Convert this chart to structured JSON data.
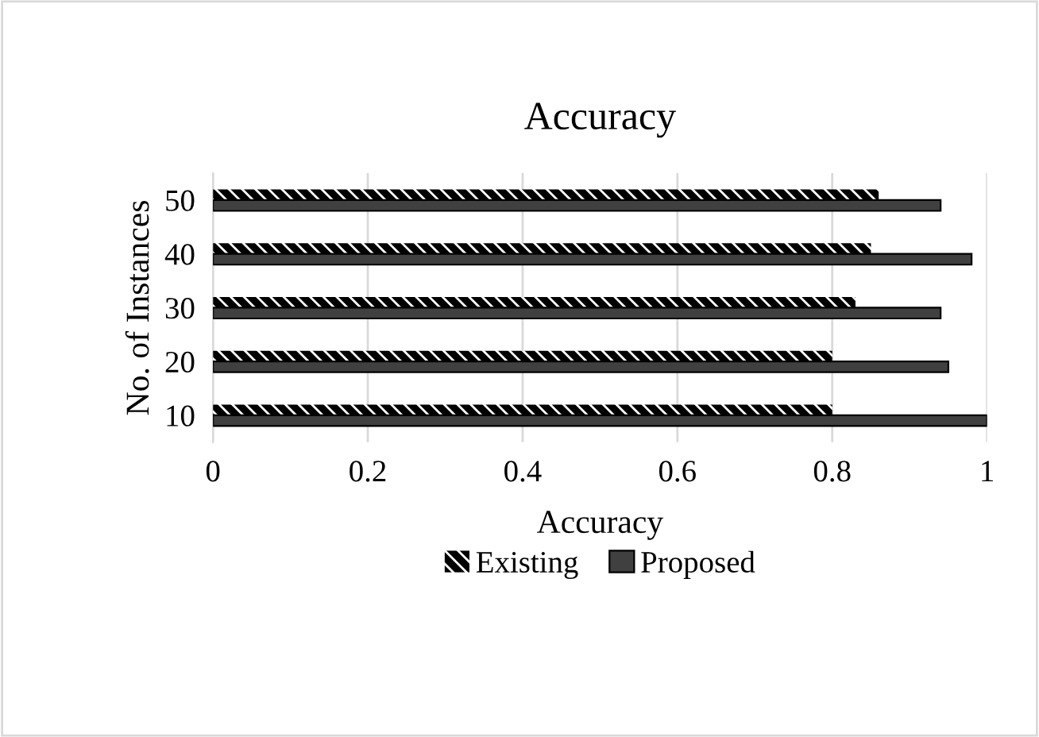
{
  "chart_data": {
    "type": "bar",
    "orientation": "horizontal",
    "title": "Accuracy",
    "xlabel": "Accuracy",
    "ylabel": "No. of Instances",
    "categories": [
      "50",
      "40",
      "30",
      "20",
      "10"
    ],
    "series": [
      {
        "name": "Existing",
        "color": "#000000",
        "values": [
          0.86,
          0.85,
          0.83,
          0.8,
          0.8
        ]
      },
      {
        "name": "Proposed",
        "color": "#404040",
        "values": [
          0.94,
          0.98,
          0.94,
          0.95,
          1.0
        ]
      }
    ],
    "xlim": [
      0,
      1
    ],
    "xticks": [
      0,
      0.2,
      0.4,
      0.6,
      0.8,
      1
    ],
    "grid": "x",
    "legend": "bottom"
  }
}
